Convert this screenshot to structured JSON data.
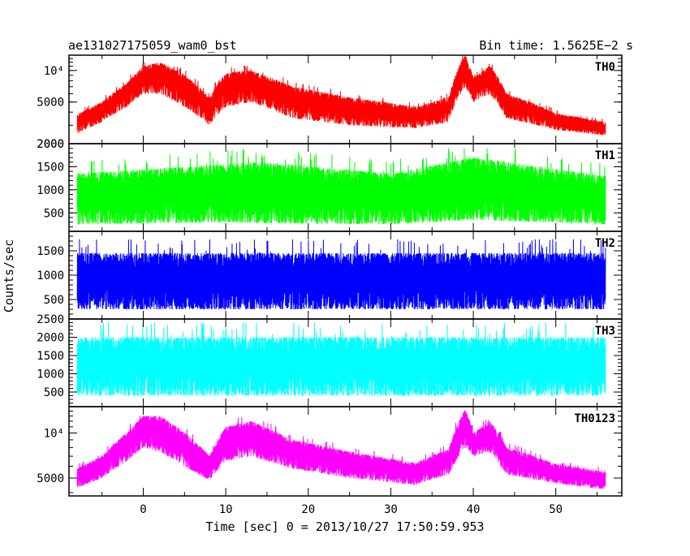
{
  "header": {
    "obs_id": "ae131027175059_wam0_bst",
    "bin_time": "Bin time: 1.5625E−2 s"
  },
  "chart_data": {
    "type": "line",
    "xlabel": "Time [sec] 0 = 2013/10/27 17:50:59.953",
    "ylabel": "Counts/sec",
    "xlim": [
      -9,
      58
    ],
    "x_ticks": [
      0,
      10,
      20,
      30,
      40,
      50
    ],
    "x_range_data": [
      -8,
      56
    ],
    "grid": false,
    "panels": [
      {
        "name": "TH0",
        "color": "#ff0000",
        "scale": "log",
        "ylim": [
          2000,
          14000
        ],
        "ticks": [
          {
            "v": 2000,
            "t": "2000"
          },
          {
            "v": 5000,
            "t": "5000"
          },
          {
            "v": 10000,
            "t": "10⁴"
          }
        ],
        "envelope": [
          {
            "x": -8,
            "lo": 2500,
            "hi": 3800
          },
          {
            "x": -5,
            "lo": 3200,
            "hi": 5000
          },
          {
            "x": -2,
            "lo": 4500,
            "hi": 7500
          },
          {
            "x": 0,
            "lo": 6000,
            "hi": 11000
          },
          {
            "x": 2,
            "lo": 6000,
            "hi": 12000
          },
          {
            "x": 5,
            "lo": 4500,
            "hi": 9000
          },
          {
            "x": 8,
            "lo": 3000,
            "hi": 5500
          },
          {
            "x": 10,
            "lo": 4500,
            "hi": 9500
          },
          {
            "x": 13,
            "lo": 5000,
            "hi": 10000
          },
          {
            "x": 18,
            "lo": 3500,
            "hi": 7000
          },
          {
            "x": 25,
            "lo": 3000,
            "hi": 5500
          },
          {
            "x": 33,
            "lo": 2800,
            "hi": 4500
          },
          {
            "x": 37,
            "lo": 3200,
            "hi": 5500
          },
          {
            "x": 39,
            "lo": 7000,
            "hi": 14000
          },
          {
            "x": 40,
            "lo": 5000,
            "hi": 8500
          },
          {
            "x": 42,
            "lo": 6000,
            "hi": 11000
          },
          {
            "x": 44,
            "lo": 3500,
            "hi": 6000
          },
          {
            "x": 50,
            "lo": 2700,
            "hi": 3900
          },
          {
            "x": 56,
            "lo": 2400,
            "hi": 3200
          }
        ]
      },
      {
        "name": "TH1",
        "color": "#00ff00",
        "scale": "linear",
        "ylim": [
          100,
          2000
        ],
        "ticks": [
          {
            "v": 500,
            "t": "500"
          },
          {
            "v": 1000,
            "t": "1000"
          },
          {
            "v": 1500,
            "t": "1500"
          },
          {
            "v": 2000,
            "t": "2000"
          }
        ],
        "envelope": [
          {
            "x": -8,
            "lo": 250,
            "hi": 1350
          },
          {
            "x": 10,
            "lo": 300,
            "hi": 1550
          },
          {
            "x": 14,
            "lo": 280,
            "hi": 1600
          },
          {
            "x": 30,
            "lo": 250,
            "hi": 1350
          },
          {
            "x": 40,
            "lo": 350,
            "hi": 1700
          },
          {
            "x": 56,
            "lo": 250,
            "hi": 1300
          }
        ]
      },
      {
        "name": "TH2",
        "color": "#0000ff",
        "scale": "linear",
        "ylim": [
          100,
          1900
        ],
        "ticks": [
          {
            "v": 500,
            "t": "500"
          },
          {
            "v": 1000,
            "t": "1000"
          },
          {
            "v": 1500,
            "t": "1500"
          }
        ],
        "envelope": [
          {
            "x": -8,
            "lo": 300,
            "hi": 1450
          },
          {
            "x": 56,
            "lo": 300,
            "hi": 1450
          }
        ]
      },
      {
        "name": "TH3",
        "color": "#00ffff",
        "scale": "linear",
        "ylim": [
          100,
          2500
        ],
        "ticks": [
          {
            "v": 500,
            "t": "500"
          },
          {
            "v": 1000,
            "t": "1000"
          },
          {
            "v": 1500,
            "t": "1500"
          },
          {
            "v": 2000,
            "t": "2000"
          },
          {
            "v": 2500,
            "t": "2500"
          }
        ],
        "envelope": [
          {
            "x": -8,
            "lo": 400,
            "hi": 2000
          },
          {
            "x": 56,
            "lo": 400,
            "hi": 2000
          }
        ]
      },
      {
        "name": "TH0123",
        "color": "#ff00ff",
        "scale": "log",
        "ylim": [
          3800,
          15000
        ],
        "ticks": [
          {
            "v": 5000,
            "t": "5000"
          },
          {
            "v": 10000,
            "t": "10⁴"
          }
        ],
        "envelope": [
          {
            "x": -8,
            "lo": 4300,
            "hi": 5800
          },
          {
            "x": -5,
            "lo": 5000,
            "hi": 7000
          },
          {
            "x": -2,
            "lo": 6500,
            "hi": 10000
          },
          {
            "x": 0,
            "lo": 8000,
            "hi": 13000
          },
          {
            "x": 2,
            "lo": 7500,
            "hi": 13000
          },
          {
            "x": 5,
            "lo": 6000,
            "hi": 10000
          },
          {
            "x": 8,
            "lo": 4800,
            "hi": 7000
          },
          {
            "x": 10,
            "lo": 6500,
            "hi": 11000
          },
          {
            "x": 13,
            "lo": 7000,
            "hi": 12000
          },
          {
            "x": 18,
            "lo": 5800,
            "hi": 9000
          },
          {
            "x": 25,
            "lo": 5000,
            "hi": 7500
          },
          {
            "x": 33,
            "lo": 4500,
            "hi": 6300
          },
          {
            "x": 37,
            "lo": 5300,
            "hi": 7800
          },
          {
            "x": 39,
            "lo": 8000,
            "hi": 14500
          },
          {
            "x": 40,
            "lo": 7000,
            "hi": 10000
          },
          {
            "x": 42,
            "lo": 7500,
            "hi": 12000
          },
          {
            "x": 44,
            "lo": 5300,
            "hi": 8000
          },
          {
            "x": 50,
            "lo": 4600,
            "hi": 6200
          },
          {
            "x": 56,
            "lo": 4200,
            "hi": 5500
          }
        ]
      }
    ]
  }
}
